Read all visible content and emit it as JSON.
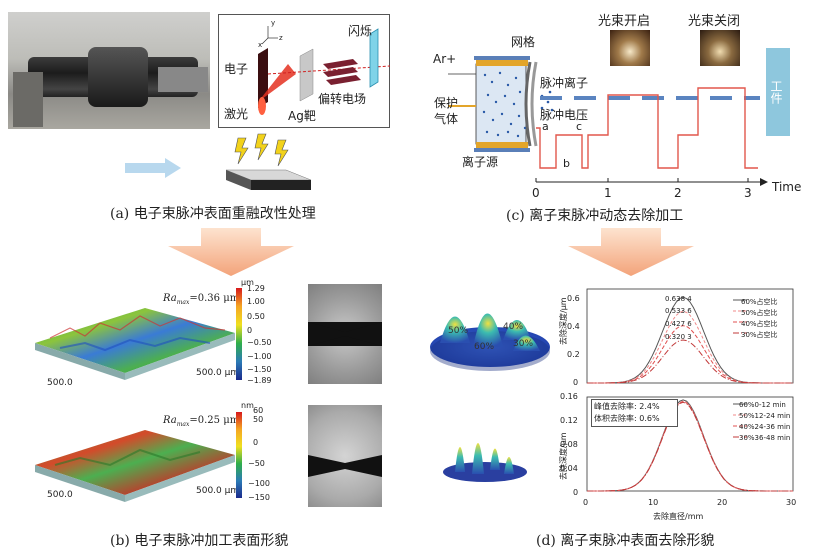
{
  "panel_a": {
    "caption": "(a) 电子束脉冲表面重融改性处理",
    "labels": {
      "electron": "电子",
      "laser": "激光",
      "target": "Ag靶",
      "field": "偏转电场",
      "flash": "闪烁",
      "axis_x": "x",
      "axis_y": "y",
      "axis_z": "z"
    }
  },
  "panel_b": {
    "caption": "(b) 电子束脉冲加工表面形貌",
    "top": {
      "ra_label": "Ra",
      "ra_sub": "max",
      "ra_value": "=0.36 μm",
      "unit": "μm",
      "ticks": [
        "1.29",
        "1.00",
        "0.50",
        "0",
        "−0.50",
        "−1.00",
        "−1.50",
        "−1.89"
      ],
      "dim1": "500.0",
      "dim2": "500.0 μm"
    },
    "bottom": {
      "ra_label": "Ra",
      "ra_sub": "max",
      "ra_value": "=0.25 μm",
      "unit": "nm",
      "ticks": [
        "60",
        "50",
        "0",
        "−50",
        "−100",
        "−150"
      ],
      "dim1": "500.0",
      "dim2": "500.0 μm"
    }
  },
  "panel_c": {
    "caption": "(c) 离子束脉冲动态去除加工",
    "labels": {
      "ar": "Ar+",
      "grid": "网格",
      "protect": "保护",
      "gas": "气体",
      "source": "离子源",
      "pulse_ion": "脉冲离子",
      "pulse_voltage": "脉冲电压",
      "beam_on": "光束开启",
      "beam_off": "光束关闭",
      "workpiece": "工件",
      "a": "a",
      "b": "b",
      "c": "c",
      "time": "Time"
    },
    "time_ticks": [
      "0",
      "1",
      "2",
      "3"
    ]
  },
  "panel_d": {
    "caption": "(d) 离子束脉冲表面去除形貌",
    "peak_labels": [
      "50%",
      "60%",
      "40%",
      "30%"
    ],
    "chart_top": {
      "ylabel": "去除深度/μm",
      "yticks": [
        "0",
        "0.2",
        "0.4",
        "0.6"
      ],
      "peak_values": [
        "0.638 4",
        "0.533 6",
        "0.427 6",
        "0.320 3"
      ],
      "legend": [
        "60%占空比",
        "50%占空比",
        "40%占空比",
        "30%占空比"
      ]
    },
    "chart_bottom": {
      "ylabel": "去除深度/μm",
      "xlabel": "去除直径/mm",
      "yticks": [
        "0",
        "0.04",
        "0.08",
        "0.12",
        "0.16"
      ],
      "xticks": [
        "0",
        "10",
        "20",
        "30"
      ],
      "note1": "峰值去除率: 2.4%",
      "note2": "体积去除率: 0.6%",
      "legend": [
        "60%0-12 min",
        "50%12-24 min",
        "40%24-36 min",
        "30%36-48 min"
      ]
    }
  },
  "chart_data": [
    {
      "type": "line",
      "ylabel": "去除深度/μm",
      "ylim": [
        0,
        0.7
      ],
      "x": [
        0,
        2,
        4,
        6,
        8,
        10,
        12,
        14,
        16,
        18,
        20,
        22,
        24,
        26,
        28,
        30
      ],
      "series": [
        {
          "name": "60%占空比",
          "peak": 0.6384
        },
        {
          "name": "50%占空比",
          "peak": 0.5336
        },
        {
          "name": "40%占空比",
          "peak": 0.4276
        },
        {
          "name": "30%占空比",
          "peak": 0.3203
        }
      ]
    },
    {
      "type": "line",
      "xlabel": "去除直径/mm",
      "ylabel": "去除深度/μm",
      "xlim": [
        0,
        30
      ],
      "ylim": [
        0,
        0.16
      ],
      "series": [
        {
          "name": "60%0-12 min",
          "peak": 0.155
        },
        {
          "name": "50%12-24 min",
          "peak": 0.153
        },
        {
          "name": "40%24-36 min",
          "peak": 0.152
        },
        {
          "name": "30%36-48 min",
          "peak": 0.151
        }
      ]
    }
  ]
}
